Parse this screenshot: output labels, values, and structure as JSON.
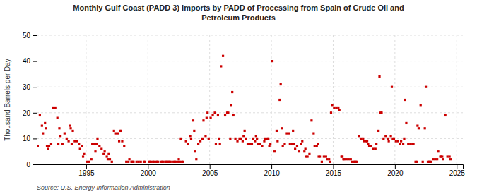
{
  "chart_data": {
    "type": "scatter",
    "title": "Monthly Gulf Coast (PADD 3) Imports by PADD of Processing from Spain of Crude Oil and\nPetroleum Products",
    "ylabel": "Thousand Barrels per Day",
    "annotations": [
      "Source: U.S. Energy Information Administration"
    ],
    "color": "#cc0000",
    "marker": "square",
    "grid": true,
    "xlim": [
      1991.0,
      2025.5
    ],
    "ylim": [
      0,
      50
    ],
    "xticks": [
      1995,
      2000,
      2005,
      2010,
      2015,
      2020,
      2025
    ],
    "yticks": [
      0,
      10,
      20,
      30,
      40,
      50
    ],
    "x": [
      1991.08,
      1991.25,
      1991.42,
      1991.5,
      1991.67,
      1991.75,
      1991.83,
      1991.92,
      1992.0,
      1992.17,
      1992.33,
      1992.5,
      1992.67,
      1992.75,
      1992.83,
      1992.92,
      1993.08,
      1993.25,
      1993.42,
      1993.58,
      1993.67,
      1993.75,
      1993.83,
      1993.92,
      1994.08,
      1994.25,
      1994.42,
      1994.5,
      1994.67,
      1994.75,
      1994.83,
      1995.08,
      1995.25,
      1995.42,
      1995.5,
      1995.67,
      1995.75,
      1995.83,
      1995.92,
      1996.08,
      1996.25,
      1996.42,
      1996.5,
      1996.67,
      1996.75,
      1996.83,
      1996.92,
      1997.08,
      1997.25,
      1997.42,
      1997.58,
      1997.67,
      1997.75,
      1997.83,
      1997.92,
      1998.08,
      1998.25,
      1998.42,
      1998.5,
      1998.67,
      1998.75,
      1998.83,
      1999.08,
      1999.25,
      1999.42,
      1999.67,
      1999.75,
      2000.08,
      2000.17,
      2000.25,
      2000.42,
      2000.5,
      2000.67,
      2000.75,
      2000.83,
      2001.08,
      2001.17,
      2001.25,
      2001.42,
      2001.5,
      2001.58,
      2001.67,
      2001.75,
      2001.83,
      2002.08,
      2002.17,
      2002.25,
      2002.42,
      2002.5,
      2002.58,
      2002.67,
      2002.75,
      2002.83,
      2003.08,
      2003.25,
      2003.42,
      2003.5,
      2003.67,
      2003.75,
      2003.83,
      2003.92,
      2004.08,
      2004.25,
      2004.42,
      2004.5,
      2004.67,
      2004.75,
      2004.83,
      2004.92,
      2005.08,
      2005.25,
      2005.42,
      2005.5,
      2005.67,
      2005.75,
      2005.83,
      2005.92,
      2006.08,
      2006.25,
      2006.42,
      2006.5,
      2006.67,
      2006.75,
      2006.83,
      2006.92,
      2007.08,
      2007.25,
      2007.42,
      2007.5,
      2007.67,
      2007.75,
      2007.83,
      2007.92,
      2008.08,
      2008.25,
      2008.42,
      2008.5,
      2008.67,
      2008.75,
      2008.83,
      2008.92,
      2009.08,
      2009.25,
      2009.42,
      2009.5,
      2009.67,
      2009.75,
      2009.83,
      2009.92,
      2010.08,
      2010.25,
      2010.42,
      2010.5,
      2010.67,
      2010.75,
      2010.83,
      2010.92,
      2011.08,
      2011.25,
      2011.42,
      2011.5,
      2011.67,
      2011.75,
      2011.83,
      2011.92,
      2012.08,
      2012.25,
      2012.42,
      2012.5,
      2012.67,
      2012.75,
      2012.83,
      2012.92,
      2013.08,
      2013.25,
      2013.42,
      2013.5,
      2013.67,
      2013.75,
      2013.83,
      2013.92,
      2014.08,
      2014.25,
      2014.42,
      2014.5,
      2014.67,
      2014.75,
      2014.83,
      2014.92,
      2015.08,
      2015.25,
      2015.42,
      2015.5,
      2015.67,
      2015.75,
      2015.83,
      2015.92,
      2016.08,
      2016.25,
      2016.42,
      2016.5,
      2016.67,
      2016.75,
      2016.83,
      2016.92,
      2017.08,
      2017.25,
      2017.42,
      2017.5,
      2017.67,
      2017.75,
      2017.83,
      2017.92,
      2018.08,
      2018.25,
      2018.42,
      2018.5,
      2018.67,
      2018.75,
      2018.83,
      2018.92,
      2019.08,
      2019.25,
      2019.42,
      2019.5,
      2019.67,
      2019.75,
      2019.83,
      2019.92,
      2020.08,
      2020.25,
      2020.42,
      2020.5,
      2020.67,
      2020.75,
      2020.83,
      2020.92,
      2021.08,
      2021.25,
      2021.42,
      2021.5,
      2021.67,
      2021.75,
      2021.83,
      2021.92,
      2022.08,
      2022.25,
      2022.42,
      2022.5,
      2022.67,
      2022.75,
      2022.83,
      2022.92,
      2023.08,
      2023.25,
      2023.42,
      2023.5,
      2023.67,
      2023.75,
      2023.83,
      2023.92,
      2024.08,
      2024.25,
      2024.42,
      2024.5
    ],
    "values": [
      7,
      19,
      15,
      12,
      16,
      14,
      7,
      6,
      7,
      8,
      22,
      22,
      18,
      8,
      14,
      11,
      8,
      12,
      10,
      9,
      15,
      14,
      8,
      13,
      9,
      9,
      8,
      6,
      7,
      3,
      4,
      1,
      1,
      2,
      8,
      8,
      5,
      8,
      10,
      7,
      6,
      4,
      5,
      3,
      2,
      4,
      2,
      1,
      13,
      12,
      12,
      9,
      13,
      13,
      9,
      7,
      1,
      1,
      2,
      1,
      1,
      1,
      1,
      1,
      1,
      1,
      1,
      1,
      1,
      1,
      1,
      1,
      1,
      1,
      1,
      1,
      1,
      1,
      1,
      1,
      1,
      1,
      1,
      1,
      1,
      1,
      1,
      1,
      2,
      1,
      10,
      1,
      1,
      9,
      8,
      11,
      10,
      17,
      13,
      5,
      2,
      8,
      9,
      10,
      17,
      11,
      18,
      20,
      10,
      18,
      19,
      20,
      8,
      19,
      10,
      8,
      38,
      42,
      19,
      20,
      20,
      10,
      23,
      28,
      19,
      10,
      9,
      10,
      10,
      9,
      11,
      13,
      10,
      8,
      8,
      8,
      10,
      9,
      11,
      10,
      8,
      8,
      7,
      9,
      10,
      10,
      10,
      7,
      8,
      40,
      5,
      13,
      9,
      25,
      31,
      14,
      7,
      8,
      12,
      12,
      8,
      8,
      13,
      8,
      6,
      7,
      5,
      8,
      9,
      5,
      6,
      3,
      3,
      4,
      17,
      12,
      7,
      7,
      8,
      3,
      3,
      1,
      3,
      3,
      2,
      2,
      1,
      20,
      23,
      22,
      22,
      22,
      21,
      3,
      3,
      2,
      2,
      2,
      2,
      2,
      1,
      1,
      1,
      1,
      1,
      11,
      10,
      10,
      9,
      9,
      9,
      8,
      7,
      7,
      6,
      6,
      8,
      13,
      34,
      20,
      20,
      10,
      11,
      10,
      9,
      11,
      30,
      10,
      10,
      9,
      9,
      8,
      9,
      8,
      10,
      25,
      16,
      8,
      8,
      8,
      8,
      1,
      1,
      15,
      14,
      23,
      1,
      14,
      30,
      1,
      1,
      1,
      1,
      2,
      2,
      2,
      5,
      3,
      3,
      3,
      2,
      19,
      3,
      3,
      2
    ]
  }
}
